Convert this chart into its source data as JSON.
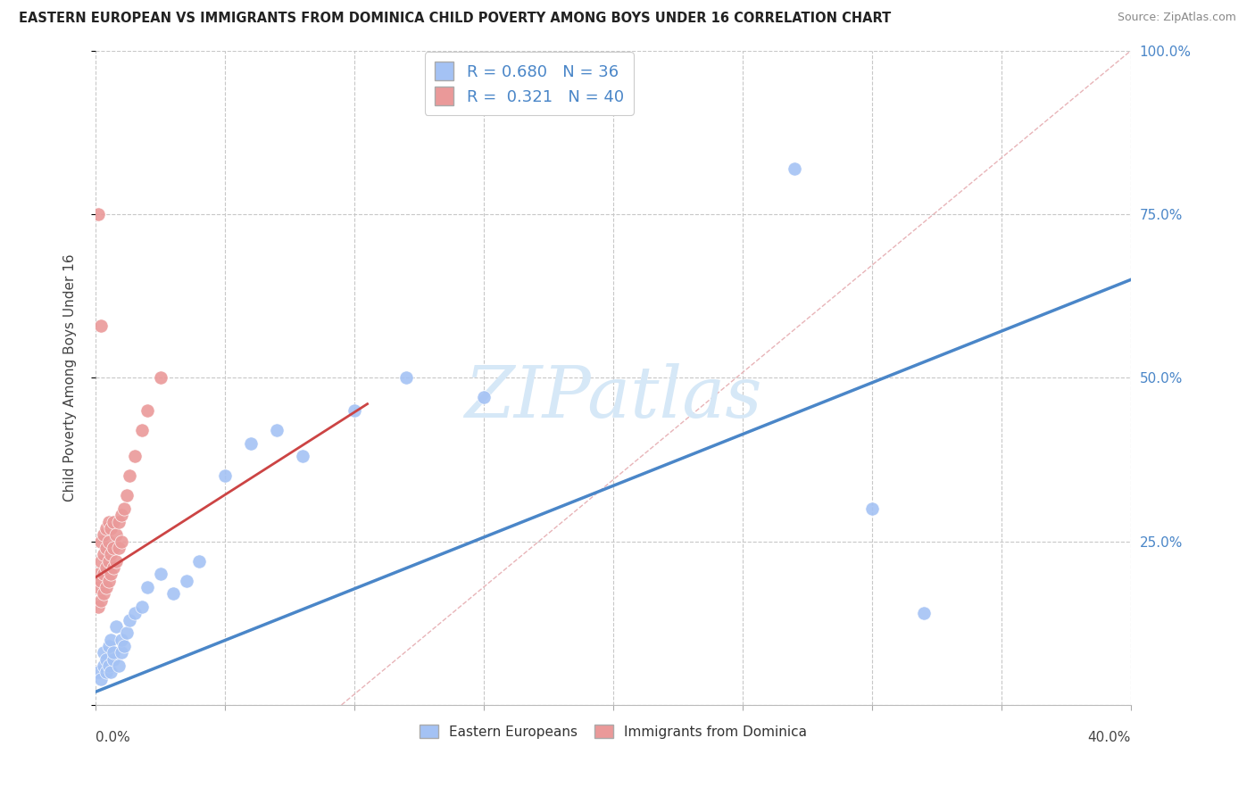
{
  "title": "EASTERN EUROPEAN VS IMMIGRANTS FROM DOMINICA CHILD POVERTY AMONG BOYS UNDER 16 CORRELATION CHART",
  "source": "Source: ZipAtlas.com",
  "ylabel_axis": "Child Poverty Among Boys Under 16",
  "legend_blue_r": "R = 0.680",
  "legend_blue_n": "N = 36",
  "legend_pink_r": "R = 0.321",
  "legend_pink_n": "N = 40",
  "blue_color": "#a4c2f4",
  "pink_color": "#ea9999",
  "blue_line_color": "#4a86c8",
  "pink_line_color": "#cc4444",
  "ref_line_color": "#e8b4b8",
  "watermark_color": "#d6e8f7",
  "blue_scatter_x": [
    0.001,
    0.002,
    0.003,
    0.003,
    0.004,
    0.004,
    0.005,
    0.005,
    0.006,
    0.006,
    0.007,
    0.007,
    0.008,
    0.009,
    0.01,
    0.01,
    0.011,
    0.012,
    0.013,
    0.015,
    0.018,
    0.02,
    0.025,
    0.03,
    0.035,
    0.04,
    0.05,
    0.06,
    0.07,
    0.08,
    0.1,
    0.12,
    0.15,
    0.27,
    0.3,
    0.32
  ],
  "blue_scatter_y": [
    0.05,
    0.04,
    0.06,
    0.08,
    0.05,
    0.07,
    0.06,
    0.09,
    0.05,
    0.1,
    0.07,
    0.08,
    0.12,
    0.06,
    0.08,
    0.1,
    0.09,
    0.11,
    0.13,
    0.14,
    0.15,
    0.18,
    0.2,
    0.17,
    0.19,
    0.22,
    0.35,
    0.4,
    0.42,
    0.38,
    0.45,
    0.5,
    0.47,
    0.82,
    0.3,
    0.14
  ],
  "pink_scatter_x": [
    0.001,
    0.001,
    0.001,
    0.002,
    0.002,
    0.002,
    0.002,
    0.003,
    0.003,
    0.003,
    0.003,
    0.004,
    0.004,
    0.004,
    0.004,
    0.005,
    0.005,
    0.005,
    0.005,
    0.006,
    0.006,
    0.006,
    0.007,
    0.007,
    0.007,
    0.008,
    0.008,
    0.009,
    0.009,
    0.01,
    0.01,
    0.011,
    0.012,
    0.013,
    0.015,
    0.018,
    0.02,
    0.025,
    0.001,
    0.002
  ],
  "pink_scatter_y": [
    0.15,
    0.18,
    0.2,
    0.16,
    0.19,
    0.22,
    0.25,
    0.17,
    0.2,
    0.23,
    0.26,
    0.18,
    0.21,
    0.24,
    0.27,
    0.19,
    0.22,
    0.25,
    0.28,
    0.2,
    0.23,
    0.27,
    0.21,
    0.24,
    0.28,
    0.22,
    0.26,
    0.24,
    0.28,
    0.25,
    0.29,
    0.3,
    0.32,
    0.35,
    0.38,
    0.42,
    0.45,
    0.5,
    0.75,
    0.58
  ],
  "blue_line_x": [
    0.0,
    0.4
  ],
  "blue_line_y": [
    0.02,
    0.65
  ],
  "pink_line_x": [
    0.0,
    0.105
  ],
  "pink_line_y": [
    0.195,
    0.46
  ],
  "ref_line_x": [
    0.095,
    0.4
  ],
  "ref_line_y": [
    0.0,
    1.0
  ],
  "xlim": [
    0,
    0.4
  ],
  "ylim": [
    0,
    1.0
  ],
  "xticks": [
    0,
    0.05,
    0.1,
    0.15,
    0.2,
    0.25,
    0.3,
    0.35,
    0.4
  ],
  "yticks": [
    0,
    0.25,
    0.5,
    0.75,
    1.0
  ],
  "figsize": [
    14.06,
    8.92
  ],
  "dpi": 100
}
